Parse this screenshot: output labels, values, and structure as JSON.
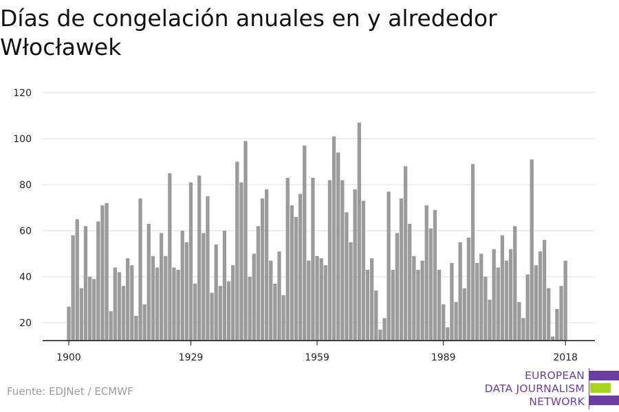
{
  "chart_data": {
    "type": "bar",
    "title": "Días de congelación anuales en y alrededor Włocławek",
    "xlabel": "",
    "ylabel": "",
    "x_ticks": [
      "1900",
      "1929",
      "1959",
      "1989",
      "2018"
    ],
    "y_ticks": [
      "20",
      "40",
      "60",
      "80",
      "100",
      "120"
    ],
    "ylim": [
      12,
      120
    ],
    "xlim": [
      1900,
      2018
    ],
    "grid": true,
    "bar_color": "#9b9b9b",
    "x": [
      1900,
      1901,
      1902,
      1903,
      1904,
      1905,
      1906,
      1907,
      1908,
      1909,
      1910,
      1911,
      1912,
      1913,
      1914,
      1915,
      1916,
      1917,
      1918,
      1919,
      1920,
      1921,
      1922,
      1923,
      1924,
      1925,
      1926,
      1927,
      1928,
      1929,
      1930,
      1931,
      1932,
      1933,
      1934,
      1935,
      1936,
      1937,
      1938,
      1939,
      1940,
      1941,
      1942,
      1943,
      1944,
      1945,
      1946,
      1947,
      1948,
      1949,
      1950,
      1951,
      1952,
      1953,
      1954,
      1955,
      1956,
      1957,
      1958,
      1959,
      1960,
      1961,
      1962,
      1963,
      1964,
      1965,
      1966,
      1967,
      1968,
      1969,
      1970,
      1971,
      1972,
      1973,
      1974,
      1975,
      1976,
      1977,
      1978,
      1979,
      1980,
      1981,
      1982,
      1983,
      1984,
      1985,
      1986,
      1987,
      1988,
      1989,
      1990,
      1991,
      1992,
      1993,
      1994,
      1995,
      1996,
      1997,
      1998,
      1999,
      2000,
      2001,
      2002,
      2003,
      2004,
      2005,
      2006,
      2007,
      2008,
      2009,
      2010,
      2011,
      2012,
      2013,
      2014,
      2015,
      2016,
      2017,
      2018
    ],
    "values": [
      27,
      58,
      65,
      35,
      62,
      40,
      39,
      64,
      71,
      72,
      25,
      44,
      42,
      36,
      48,
      45,
      23,
      74,
      28,
      63,
      49,
      44,
      59,
      49,
      85,
      44,
      43,
      60,
      55,
      81,
      37,
      84,
      59,
      75,
      33,
      54,
      36,
      60,
      38,
      45,
      90,
      81,
      99,
      40,
      50,
      62,
      74,
      78,
      47,
      37,
      51,
      32,
      83,
      71,
      66,
      76,
      97,
      47,
      83,
      49,
      48,
      45,
      82,
      101,
      94,
      82,
      68,
      55,
      78,
      107,
      73,
      43,
      48,
      34,
      17,
      22,
      77,
      43,
      59,
      74,
      88,
      63,
      49,
      43,
      47,
      71,
      61,
      69,
      43,
      28,
      18,
      46,
      29,
      55,
      35,
      57,
      89,
      46,
      50,
      40,
      30,
      52,
      44,
      58,
      47,
      52,
      62,
      29,
      22,
      41,
      91,
      45,
      51,
      56,
      35,
      14,
      26,
      36,
      47
    ]
  },
  "source": "Fuente: EDJNet / ECMWF",
  "logo": {
    "line1": "EUROPEAN",
    "line2": "DATA JOURNALISM",
    "line3": "NETWORK",
    "color_purple": "#6b3d9e",
    "color_green": "#a4d41c"
  }
}
